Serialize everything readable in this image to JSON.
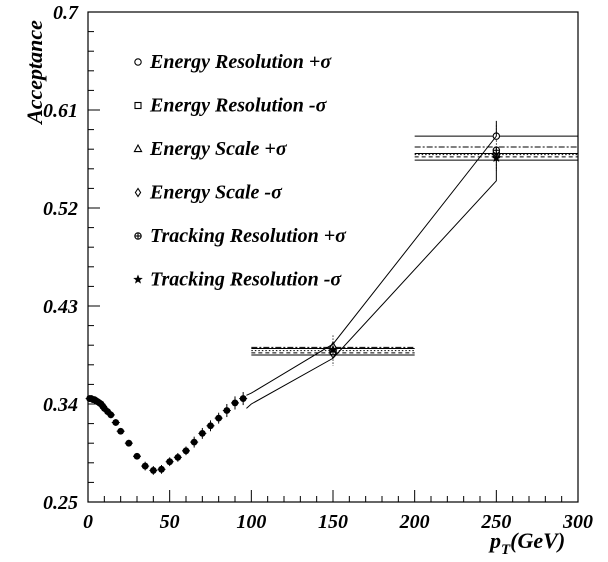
{
  "chart_data": {
    "type": "scatter",
    "title": "",
    "xlabel": "p_T(GeV)",
    "xlabel_main": "p",
    "xlabel_sub": "T",
    "xlabel_rest": "(GeV)",
    "ylabel": "Acceptance",
    "xlim": [
      0,
      300
    ],
    "ylim": [
      0.25,
      0.7
    ],
    "x_ticks": [
      0,
      50,
      100,
      150,
      200,
      250,
      300
    ],
    "x_tick_labels": [
      "0",
      "50",
      "100",
      "150",
      "200",
      "250",
      "300"
    ],
    "y_ticks": [
      0.25,
      0.34,
      0.43,
      0.52,
      0.61,
      0.7
    ],
    "y_tick_labels": [
      "0.25",
      "0.34",
      "0.43",
      "0.52",
      "0.61",
      "0.7"
    ],
    "grid": false,
    "legend_position": "top-left",
    "series": [
      {
        "name": "Energy Resolution +σ",
        "marker": "circle"
      },
      {
        "name": "Energy Resolution -σ",
        "marker": "square"
      },
      {
        "name": "Energy Scale +σ",
        "marker": "triangle"
      },
      {
        "name": "Energy Scale -σ",
        "marker": "diamond"
      },
      {
        "name": "Tracking Resolution +σ",
        "marker": "cross-circle"
      },
      {
        "name": "Tracking Resolution -σ",
        "marker": "star"
      }
    ],
    "low_pt_points": {
      "x": [
        1,
        2,
        3,
        4,
        5,
        6,
        7,
        8,
        9,
        10,
        12,
        14,
        17,
        20,
        25,
        30,
        35,
        40,
        45,
        50,
        55,
        60,
        65,
        70,
        75,
        80,
        85,
        90,
        95
      ],
      "y": [
        0.345,
        0.345,
        0.344,
        0.344,
        0.343,
        0.342,
        0.341,
        0.34,
        0.338,
        0.336,
        0.333,
        0.33,
        0.323,
        0.315,
        0.304,
        0.292,
        0.283,
        0.279,
        0.28,
        0.287,
        0.291,
        0.297,
        0.305,
        0.313,
        0.32,
        0.327,
        0.334,
        0.341,
        0.345
      ],
      "err": [
        0.003,
        0.003,
        0.003,
        0.003,
        0.003,
        0.003,
        0.003,
        0.003,
        0.003,
        0.003,
        0.003,
        0.003,
        0.003,
        0.003,
        0.003,
        0.003,
        0.004,
        0.004,
        0.004,
        0.004,
        0.004,
        0.004,
        0.005,
        0.005,
        0.005,
        0.005,
        0.006,
        0.006,
        0.006
      ]
    },
    "bins": [
      {
        "x_range": [
          100,
          200
        ],
        "x_center": 150,
        "levels": [
          0.385,
          0.387,
          0.389,
          0.391,
          0.392
        ],
        "points": [
          0.391,
          0.389,
          0.393,
          0.386,
          0.388,
          0.39
        ]
      },
      {
        "x_range": [
          200,
          300
        ],
        "x_center": 250,
        "levels": [
          0.564,
          0.567,
          0.569,
          0.57,
          0.576,
          0.586
        ],
        "points": [
          0.586,
          0.569,
          0.572,
          0.567,
          0.573,
          0.566
        ]
      }
    ],
    "envelope_upper": {
      "x": [
        97,
        100,
        150,
        250,
        250
      ],
      "y": [
        0.348,
        0.35,
        0.395,
        0.586,
        0.6
      ]
    },
    "envelope_lower": {
      "x": [
        97,
        100,
        150,
        250,
        250
      ],
      "y": [
        0.336,
        0.34,
        0.382,
        0.545,
        0.575
      ]
    }
  }
}
